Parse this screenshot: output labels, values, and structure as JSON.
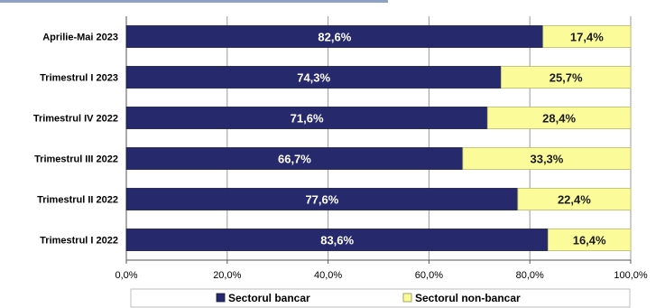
{
  "chart_data": {
    "type": "bar",
    "orientation": "horizontal",
    "stacked": true,
    "categories": [
      "Aprilie-Mai 2023",
      "Trimestrul I 2023",
      "Trimestrul IV 2022",
      "Trimestrul III 2022",
      "Trimestrul II 2022",
      "Trimestrul I 2022"
    ],
    "series": [
      {
        "name": "Sectorul bancar",
        "values": [
          82.6,
          74.3,
          71.6,
          66.7,
          77.6,
          83.6
        ],
        "labels": [
          "82,6%",
          "74,3%",
          "71,6%",
          "66,7%",
          "77,6%",
          "83,6%"
        ],
        "color": "#262a6d"
      },
      {
        "name": "Sectorul non-bancar",
        "values": [
          17.4,
          25.7,
          28.4,
          33.3,
          22.4,
          16.4
        ],
        "labels": [
          "17,4%",
          "25,7%",
          "28,4%",
          "33,3%",
          "22,4%",
          "16,4%"
        ],
        "color": "#fbfb9a"
      }
    ],
    "xlim": [
      0,
      100
    ],
    "xticks": [
      0,
      20,
      40,
      60,
      80,
      100
    ],
    "xtick_labels": [
      "0,0%",
      "20,0%",
      "40,0%",
      "60,0%",
      "80,0%",
      "100,0%"
    ],
    "grid": true,
    "legend_position": "bottom"
  }
}
